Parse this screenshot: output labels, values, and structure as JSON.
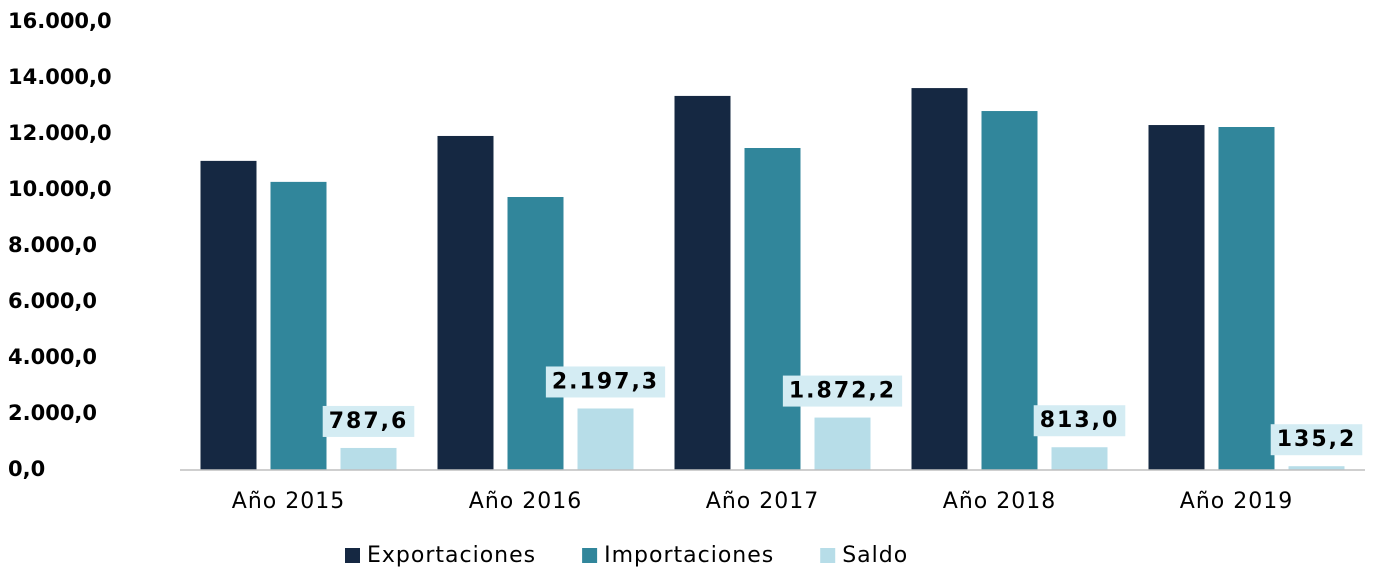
{
  "chart_data": {
    "type": "bar",
    "categories": [
      "Año 2015",
      "Año 2016",
      "Año 2017",
      "Año 2018",
      "Año 2019"
    ],
    "series": [
      {
        "name": "Exportaciones",
        "color": "#152842",
        "values": [
          11040,
          11930,
          13360,
          13640,
          12320
        ]
      },
      {
        "name": "Importaciones",
        "color": "#31869b",
        "values": [
          10290,
          9750,
          11500,
          12820,
          12250
        ]
      },
      {
        "name": "Saldo",
        "color": "#b7dde8",
        "values": [
          787.6,
          2197.3,
          1872.2,
          813.0,
          135.2
        ],
        "value_labels": [
          "787,6",
          "2.197,3",
          "1.872,2",
          "813,0",
          "135,2"
        ]
      }
    ],
    "ylim": [
      0,
      16000
    ],
    "yticks": [
      {
        "value": 0,
        "label": "0,0"
      },
      {
        "value": 2000,
        "label": "2.000,0"
      },
      {
        "value": 4000,
        "label": "4.000,0"
      },
      {
        "value": 6000,
        "label": "6.000,0"
      },
      {
        "value": 8000,
        "label": "8.000,0"
      },
      {
        "value": 10000,
        "label": "10.000,0"
      },
      {
        "value": 12000,
        "label": "12.000,0"
      },
      {
        "value": 14000,
        "label": "14.000,0"
      },
      {
        "value": 16000,
        "label": "16.000,0"
      }
    ],
    "grid": false,
    "legend": "bottom"
  }
}
